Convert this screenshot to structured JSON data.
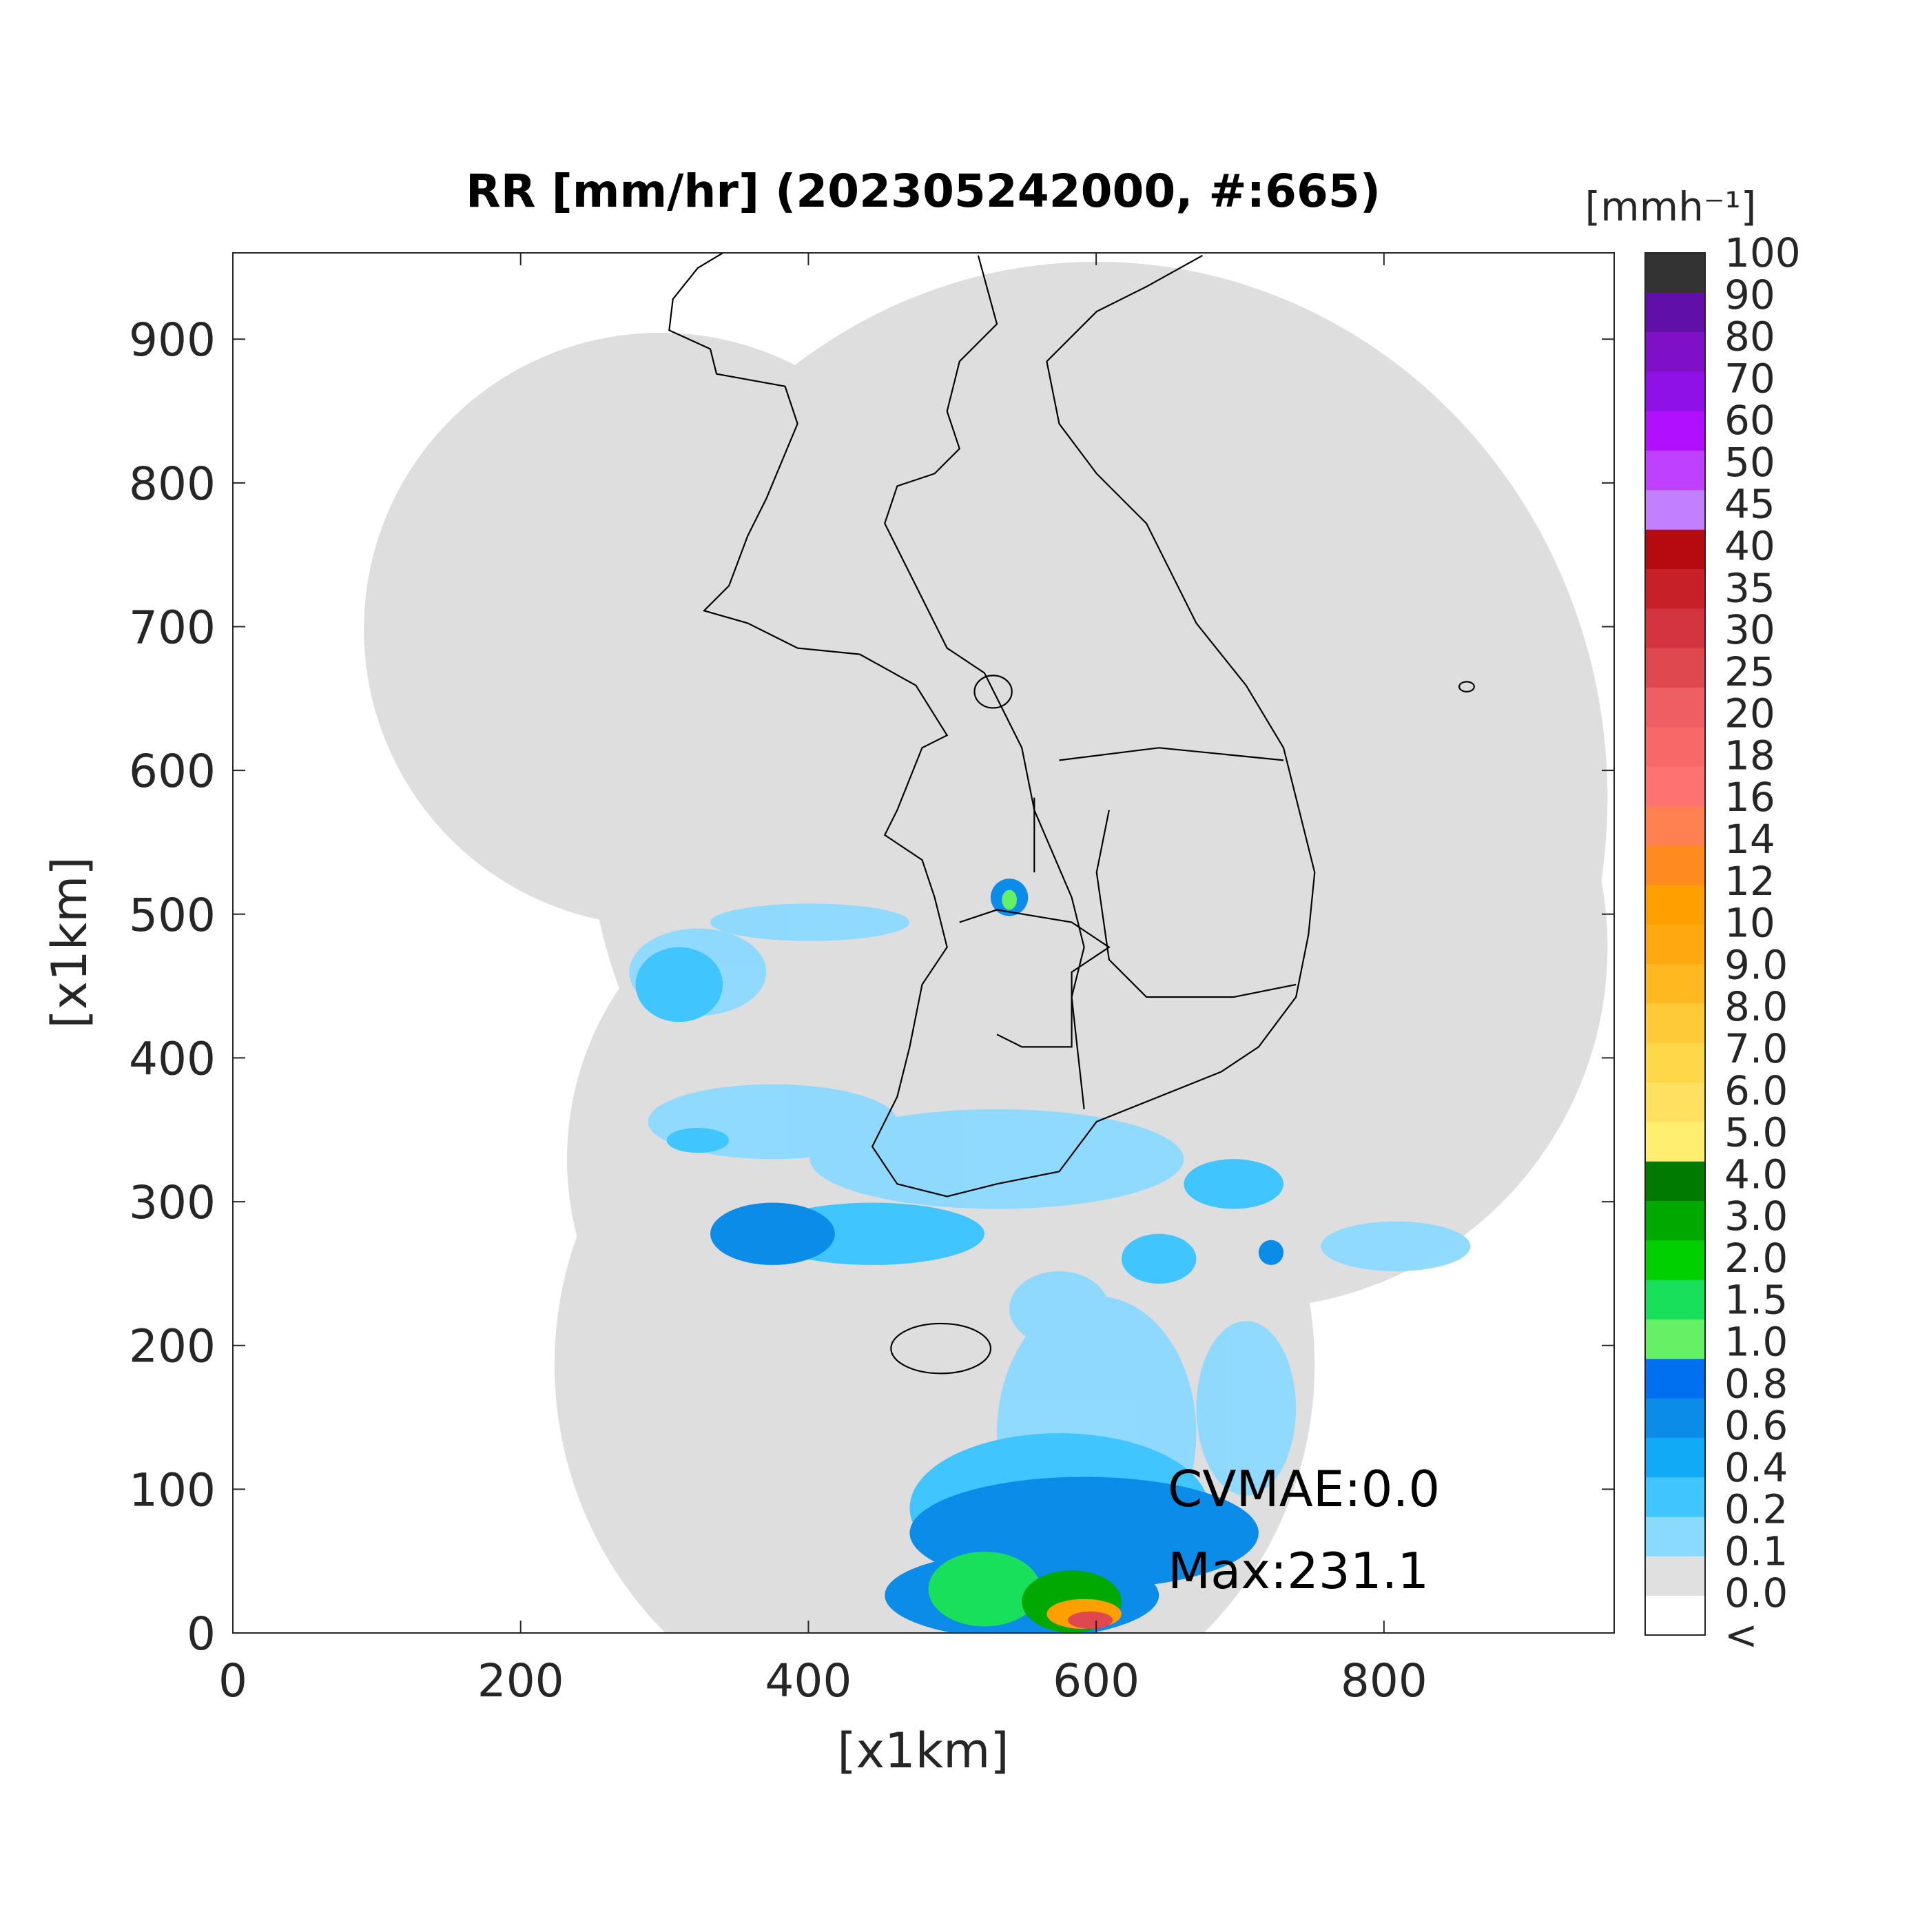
{
  "chart_data": {
    "type": "map",
    "title": "RR [mm/hr] (202305242000, #:665)",
    "xlabel": "[x1km]",
    "ylabel": "[x1km]",
    "xlim": [
      0,
      960
    ],
    "ylim": [
      0,
      960
    ],
    "xticks": [
      0,
      200,
      400,
      600,
      800
    ],
    "yticks": [
      0,
      100,
      200,
      300,
      400,
      500,
      600,
      700,
      800,
      900
    ],
    "annotations": [
      "CVMAE:0.0",
      "Max:231.1"
    ],
    "colorbar": {
      "title": "[mmh⁻¹]",
      "labels": [
        "<",
        "0.0",
        "0.1",
        "0.2",
        "0.4",
        "0.6",
        "0.8",
        "1.0",
        "1.5",
        "2.0",
        "3.0",
        "4.0",
        "5.0",
        "6.0",
        "7.0",
        "8.0",
        "9.0",
        "10",
        "12",
        "14",
        "16",
        "18",
        "20",
        "25",
        "30",
        "35",
        "40",
        "45",
        "50",
        "60",
        "70",
        "80",
        "90",
        "100"
      ],
      "colors": [
        "#ffffff",
        "#e0e0e0",
        "#8ad9ff",
        "#40c5ff",
        "#10aaf6",
        "#0a8ce8",
        "#0070f0",
        "#66f066",
        "#19e05a",
        "#00d000",
        "#00a800",
        "#007a00",
        "#ffee70",
        "#ffe060",
        "#ffd84a",
        "#ffca38",
        "#ffb820",
        "#ffa810",
        "#ffa000",
        "#ff8a20",
        "#ff8050",
        "#ff7272",
        "#f86868",
        "#ee5e62",
        "#e04850",
        "#d33440",
        "#c82028",
        "#b40a10",
        "#c080ff",
        "#c040ff",
        "#b010ff",
        "#9010e8",
        "#8010c8",
        "#6010a8",
        "#333333"
      ]
    }
  }
}
